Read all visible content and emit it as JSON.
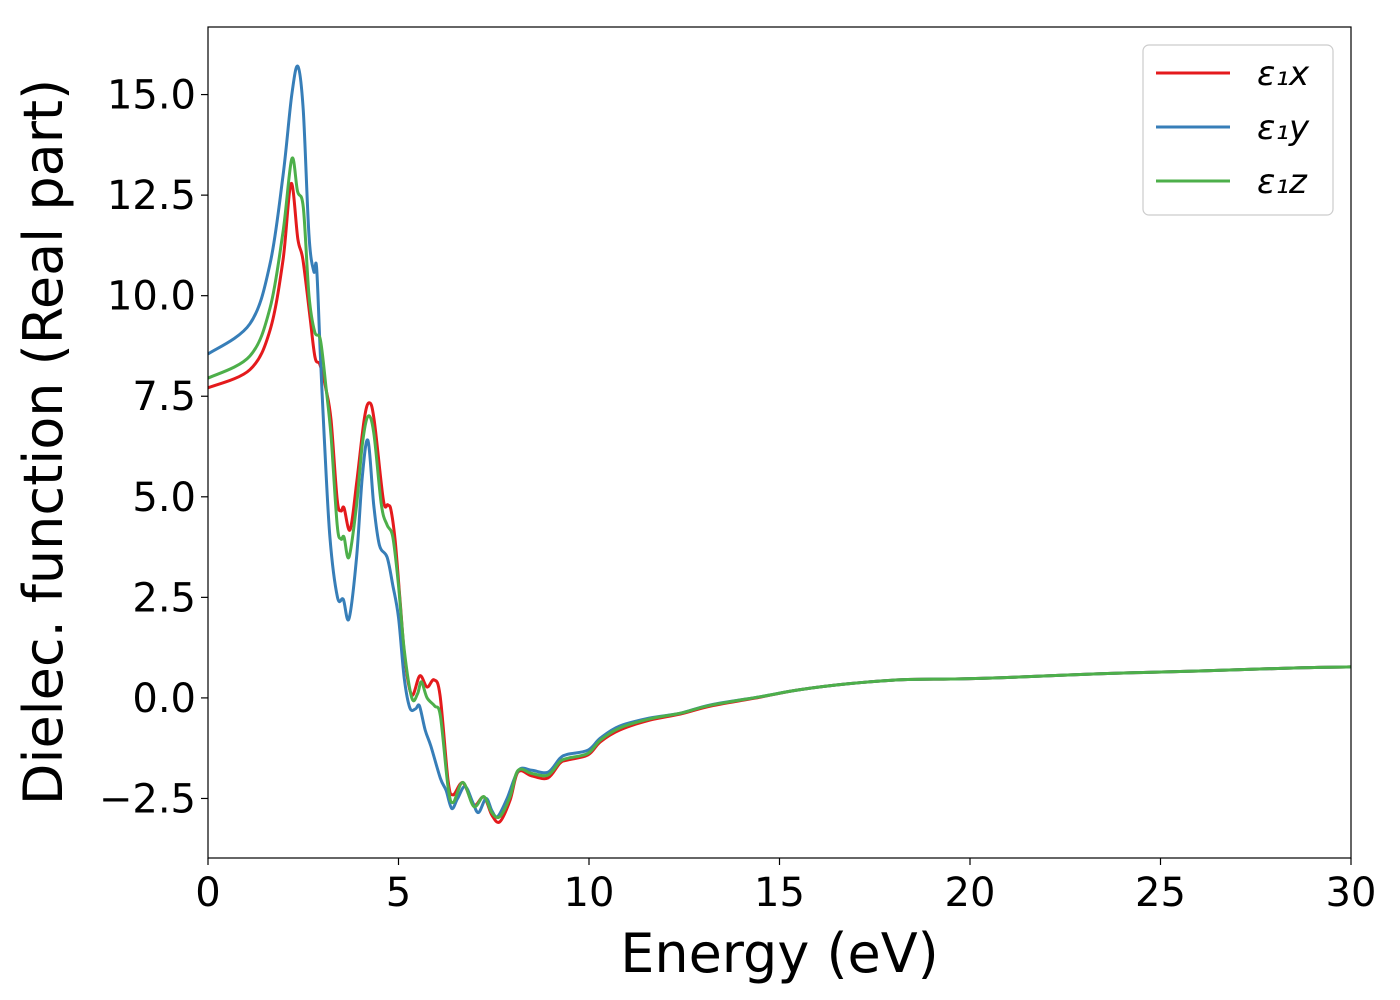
{
  "chart_data": {
    "type": "line",
    "title": "",
    "xlabel": "Energy (eV)",
    "ylabel": "Dielec. function (Real part)",
    "xlim": [
      0,
      30
    ],
    "ylim": [
      -3.98,
      16.68
    ],
    "xticks": [
      0,
      5,
      10,
      15,
      20,
      25,
      30
    ],
    "xtick_labels": [
      "0",
      "5",
      "10",
      "15",
      "20",
      "25",
      "30"
    ],
    "yticks": [
      -2.5,
      0.0,
      2.5,
      5.0,
      7.5,
      10.0,
      12.5,
      15.0
    ],
    "ytick_labels": [
      "−2.5",
      "0.0",
      "2.5",
      "5.0",
      "7.5",
      "10.0",
      "12.5",
      "15.0"
    ],
    "grid": false,
    "legend_position": "top-right",
    "series": [
      {
        "name": "ε₁x",
        "color": "#e41a1c",
        "x": [
          0,
          1.1,
          1.63,
          1.97,
          2.18,
          2.36,
          2.49,
          2.68,
          2.81,
          2.94,
          3.1,
          3.23,
          3.39,
          3.49,
          3.57,
          3.73,
          3.91,
          4.1,
          4.23,
          4.36,
          4.6,
          4.72,
          4.8,
          4.91,
          5.04,
          5.17,
          5.35,
          5.56,
          5.75,
          5.93,
          6.09,
          6.3,
          6.43,
          6.69,
          6.98,
          7.24,
          7.45,
          7.66,
          7.93,
          8.14,
          8.5,
          8.92,
          9.24,
          9.45,
          9.97,
          10.3,
          10.8,
          11.6,
          12.4,
          13.2,
          14.5,
          15.5,
          16.8,
          18.2,
          19.5,
          20.8,
          23.4,
          26,
          28.7,
          30
        ],
        "y": [
          7.71,
          8.16,
          9.15,
          10.9,
          12.79,
          11.4,
          10.9,
          9.45,
          8.46,
          8.28,
          7.66,
          6.9,
          4.93,
          4.65,
          4.73,
          4.18,
          5.42,
          6.92,
          7.34,
          6.92,
          4.93,
          4.8,
          4.68,
          3.93,
          2.44,
          0.95,
          0.07,
          0.55,
          0.27,
          0.45,
          0.07,
          -2.04,
          -2.41,
          -2.11,
          -2.66,
          -2.46,
          -2.91,
          -3.08,
          -2.54,
          -1.84,
          -1.94,
          -1.99,
          -1.62,
          -1.54,
          -1.42,
          -1.09,
          -0.8,
          -0.55,
          -0.4,
          -0.2,
          0.02,
          0.2,
          0.35,
          0.45,
          0.47,
          0.5,
          0.6,
          0.67,
          0.75,
          0.77
        ]
      },
      {
        "name": "ε₁y",
        "color": "#377eb8",
        "x": [
          0,
          1.1,
          1.63,
          1.97,
          2.2,
          2.36,
          2.5,
          2.65,
          2.78,
          2.85,
          2.95,
          3.05,
          3.2,
          3.4,
          3.55,
          3.7,
          3.9,
          4.05,
          4.2,
          4.35,
          4.5,
          4.7,
          4.85,
          5.0,
          5.15,
          5.3,
          5.45,
          5.55,
          5.7,
          5.85,
          6.1,
          6.25,
          6.4,
          6.55,
          6.75,
          6.95,
          7.1,
          7.3,
          7.45,
          7.6,
          7.85,
          8.15,
          8.5,
          8.92,
          9.24,
          9.45,
          9.97,
          10.3,
          10.8,
          11.6,
          12.4,
          13.2,
          14.5,
          15.5,
          16.8,
          18.2,
          19.5,
          20.8,
          23.4,
          26,
          28.7,
          30
        ],
        "y": [
          8.55,
          9.3,
          10.8,
          13.0,
          15.0,
          15.7,
          14.6,
          11.5,
          10.6,
          10.7,
          8.5,
          6.5,
          4.0,
          2.5,
          2.45,
          1.97,
          3.5,
          5.5,
          6.4,
          4.8,
          3.8,
          3.5,
          2.8,
          2.0,
          0.5,
          -0.25,
          -0.27,
          -0.2,
          -0.8,
          -1.2,
          -2.0,
          -2.3,
          -2.75,
          -2.5,
          -2.2,
          -2.6,
          -2.85,
          -2.5,
          -2.8,
          -2.95,
          -2.5,
          -1.8,
          -1.8,
          -1.85,
          -1.5,
          -1.4,
          -1.3,
          -1.0,
          -0.7,
          -0.5,
          -0.38,
          -0.17,
          0.03,
          0.2,
          0.35,
          0.45,
          0.47,
          0.5,
          0.6,
          0.67,
          0.75,
          0.77
        ]
      },
      {
        "name": "ε₁z",
        "color": "#4daf4a",
        "x": [
          0,
          1.1,
          1.63,
          1.97,
          2.2,
          2.35,
          2.5,
          2.65,
          2.8,
          2.95,
          3.1,
          3.23,
          3.39,
          3.49,
          3.57,
          3.7,
          3.9,
          4.05,
          4.2,
          4.35,
          4.55,
          4.7,
          4.85,
          5.0,
          5.15,
          5.35,
          5.5,
          5.6,
          5.75,
          5.95,
          6.1,
          6.3,
          6.43,
          6.69,
          6.98,
          7.24,
          7.45,
          7.66,
          7.93,
          8.14,
          8.5,
          8.92,
          9.24,
          9.45,
          9.97,
          10.3,
          10.8,
          11.6,
          12.4,
          13.2,
          14.5,
          15.5,
          16.8,
          18.2,
          19.5,
          20.8,
          23.4,
          26,
          28.7,
          30
        ],
        "y": [
          7.95,
          8.5,
          9.7,
          11.6,
          13.4,
          12.6,
          12.2,
          10.0,
          9.1,
          8.9,
          7.7,
          6.5,
          4.3,
          3.95,
          4.0,
          3.5,
          4.8,
          6.3,
          7.0,
          6.6,
          4.8,
          4.3,
          4.0,
          2.8,
          1.2,
          0.0,
          0.1,
          0.4,
          0.0,
          -0.2,
          -0.45,
          -2.2,
          -2.6,
          -2.1,
          -2.7,
          -2.45,
          -2.85,
          -2.95,
          -2.45,
          -1.8,
          -1.88,
          -1.92,
          -1.58,
          -1.5,
          -1.38,
          -1.05,
          -0.75,
          -0.52,
          -0.38,
          -0.18,
          0.03,
          0.2,
          0.35,
          0.45,
          0.47,
          0.5,
          0.6,
          0.67,
          0.75,
          0.77
        ]
      }
    ]
  }
}
